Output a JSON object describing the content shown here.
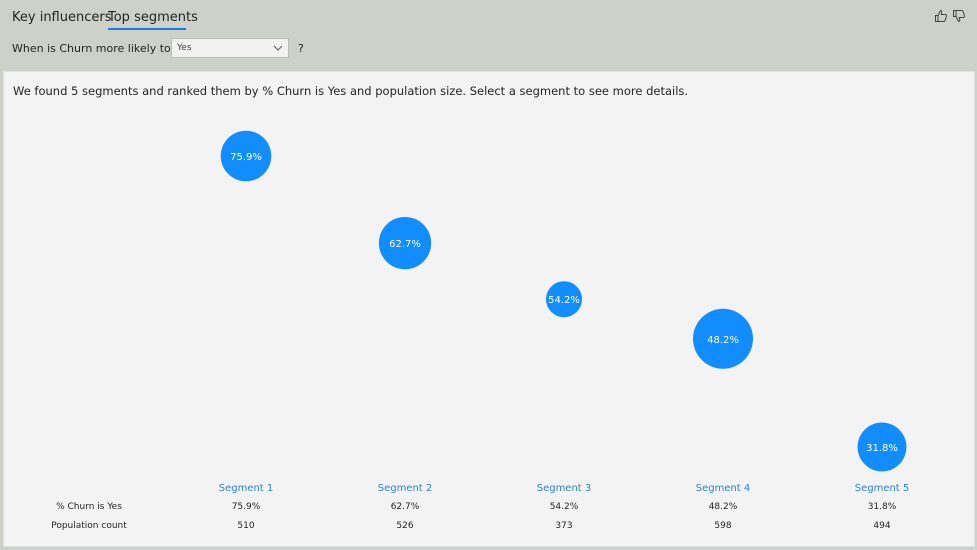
{
  "tabs": [
    {
      "label": "Key influencers",
      "active": false
    },
    {
      "label": "Top segments",
      "active": true
    }
  ],
  "feedback": {
    "like_icon": "thumbs-up-icon",
    "dislike_icon": "thumbs-down-icon"
  },
  "filter": {
    "question": "When is Churn more likely to be",
    "selected": "Yes",
    "help": "?"
  },
  "summary": "We found 5 segments and ranked them by % Churn is Yes and population size. Select a segment to see more details.",
  "colors": {
    "bubble": "#118dff",
    "segment_label": "#2a84d8",
    "tab_underline": "#1a7ee0"
  },
  "table": {
    "row_labels": [
      "% Churn is Yes",
      "Population count"
    ]
  },
  "segments": [
    {
      "name": "Segment 1",
      "churn": 75.9,
      "churn_label": "75.9%",
      "population": 510
    },
    {
      "name": "Segment 2",
      "churn": 62.7,
      "churn_label": "62.7%",
      "population": 526
    },
    {
      "name": "Segment 3",
      "churn": 54.2,
      "churn_label": "54.2%",
      "population": 373
    },
    {
      "name": "Segment 4",
      "churn": 48.2,
      "churn_label": "48.2%",
      "population": 598
    },
    {
      "name": "Segment 5",
      "churn": 31.8,
      "churn_label": "31.8%",
      "population": 494
    }
  ]
}
